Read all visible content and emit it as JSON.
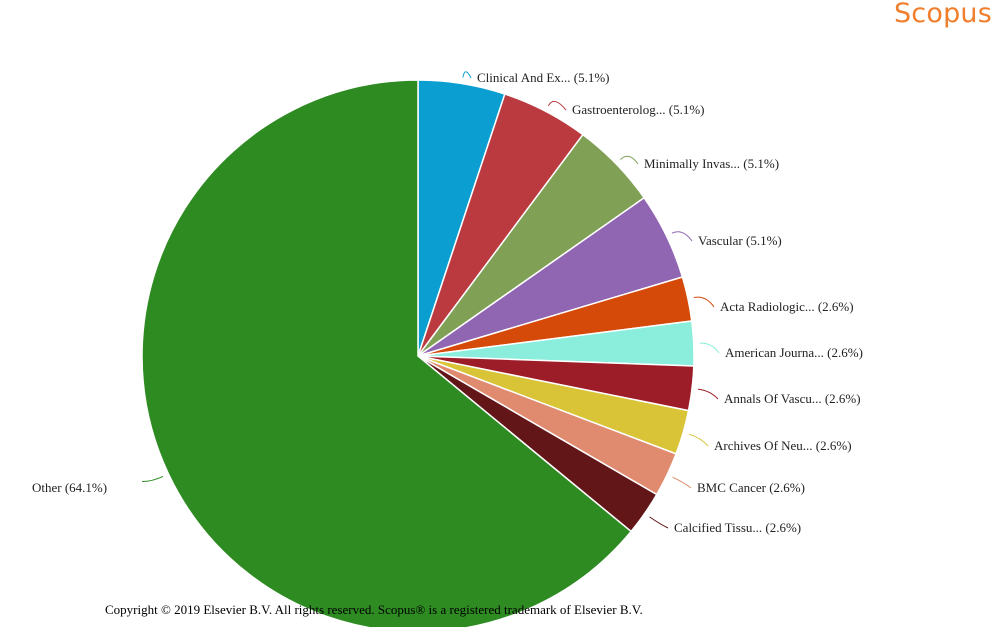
{
  "brand": {
    "name": "Scopus",
    "color": "#ef7f2d"
  },
  "copyright": "Copyright © 2019 Elsevier B.V. All rights reserved. Scopus® is a registered trademark of Elsevier B.V.",
  "chart_data": {
    "type": "pie",
    "title": "",
    "legend": "none",
    "slices": [
      {
        "label": "Clinical And Ex...",
        "percent_text": "(5.1%)",
        "value": 5.1,
        "color": "#0b9fd1"
      },
      {
        "label": "Gastroenterolog...",
        "percent_text": "(5.1%)",
        "value": 5.1,
        "color": "#ba3a40"
      },
      {
        "label": "Minimally Invas...",
        "percent_text": "(5.1%)",
        "value": 5.1,
        "color": "#80a056"
      },
      {
        "label": "Vascular",
        "percent_text": "(5.1%)",
        "value": 5.1,
        "color": "#9065b2"
      },
      {
        "label": "Acta Radiologic...",
        "percent_text": "(2.6%)",
        "value": 2.6,
        "color": "#d54a09"
      },
      {
        "label": "American Journa...",
        "percent_text": "(2.6%)",
        "value": 2.6,
        "color": "#8beddb"
      },
      {
        "label": "Annals Of Vascu...",
        "percent_text": "(2.6%)",
        "value": 2.6,
        "color": "#9c1d28"
      },
      {
        "label": "Archives Of Neu...",
        "percent_text": "(2.6%)",
        "value": 2.6,
        "color": "#d8c436"
      },
      {
        "label": "BMC Cancer",
        "percent_text": "(2.6%)",
        "value": 2.6,
        "color": "#e08b6f"
      },
      {
        "label": "Calcified Tissu...",
        "percent_text": "(2.6%)",
        "value": 2.6,
        "color": "#621618"
      },
      {
        "label": "Other",
        "percent_text": "(64.1%)",
        "value": 64.1,
        "color": "#2e8b22"
      }
    ]
  }
}
